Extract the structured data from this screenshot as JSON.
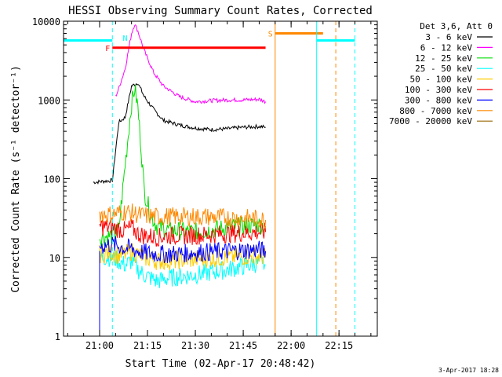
{
  "chart_data": {
    "type": "line",
    "title": "HESSI Observing Summary Count Rates, Corrected",
    "xlabel": "Start Time (02-Apr-17 20:48:42)",
    "ylabel": "Corrected Count Rate (s⁻¹ detector⁻¹)",
    "yscale": "log",
    "ylim": [
      1,
      10000
    ],
    "x_ticks": [
      "21:00",
      "21:15",
      "21:30",
      "21:45",
      "22:00",
      "22:15"
    ],
    "y_ticks": [
      "1",
      "10",
      "100",
      "1000",
      "10000"
    ],
    "legend_title": "Det 3,6, Att 0",
    "legend_position": "right",
    "footer_date": "3-Apr-2017 18:28",
    "series": [
      {
        "name": "3 - 6 keV",
        "color": "#000000",
        "x": [
          "20:58",
          "21:04",
          "21:06",
          "21:08",
          "21:10",
          "21:12",
          "21:14",
          "21:17",
          "21:20",
          "21:25",
          "21:30",
          "21:35",
          "21:40",
          "21:45",
          "21:50",
          "21:52"
        ],
        "y": [
          90,
          95,
          520,
          600,
          1500,
          1650,
          1100,
          750,
          550,
          480,
          440,
          420,
          430,
          450,
          460,
          450
        ]
      },
      {
        "name": "6 - 12 keV",
        "color": "#ff00ff",
        "x": [
          "21:05",
          "21:06",
          "21:08",
          "21:10",
          "21:11",
          "21:12",
          "21:14",
          "21:17",
          "21:20",
          "21:25",
          "21:30",
          "21:35",
          "21:40",
          "21:45",
          "21:50",
          "21:52"
        ],
        "y": [
          1100,
          1400,
          2500,
          7000,
          9200,
          7500,
          4200,
          2200,
          1500,
          1100,
          950,
          980,
          1000,
          1000,
          1020,
          950
        ]
      },
      {
        "name": "12 - 25 keV",
        "color": "#00dd00",
        "x": [
          "21:00",
          "21:04",
          "21:06",
          "21:08",
          "21:10",
          "21:11",
          "21:12",
          "21:13",
          "21:14",
          "21:16",
          "21:18",
          "21:22",
          "21:30",
          "21:40",
          "21:50",
          "21:52"
        ],
        "y": [
          18,
          19,
          22,
          150,
          900,
          1400,
          800,
          250,
          70,
          35,
          25,
          22,
          21,
          24,
          26,
          25
        ]
      },
      {
        "name": "25 - 50 keV",
        "color": "#00ffff",
        "x": [
          "21:00",
          "21:04",
          "21:06",
          "21:08",
          "21:10",
          "21:12",
          "21:14",
          "21:18",
          "21:22",
          "21:30",
          "21:40",
          "21:50",
          "21:52"
        ],
        "y": [
          10,
          10,
          9,
          8,
          9,
          7,
          6,
          5,
          5.5,
          6,
          7,
          8.5,
          8
        ]
      },
      {
        "name": "50 - 100 keV",
        "color": "#ffcc00",
        "x": [
          "21:00",
          "21:04",
          "21:06",
          "21:08",
          "21:10",
          "21:12",
          "21:14",
          "21:18",
          "21:22",
          "21:30",
          "21:40",
          "21:50",
          "21:52"
        ],
        "y": [
          11,
          11.5,
          10.5,
          11,
          12,
          11,
          10,
          9,
          9,
          9.5,
          10,
          10.5,
          10
        ]
      },
      {
        "name": "100 - 300 keV",
        "color": "#ff0000",
        "x": [
          "21:00",
          "21:04",
          "21:06",
          "21:08",
          "21:10",
          "21:12",
          "21:14",
          "21:18",
          "21:22",
          "21:30",
          "21:40",
          "21:50",
          "21:52"
        ],
        "y": [
          25,
          24,
          23,
          22,
          24,
          20,
          19,
          18,
          19,
          19,
          20,
          21,
          21
        ]
      },
      {
        "name": "300 - 800 keV",
        "color": "#0000ff",
        "x": [
          "21:00",
          "21:04",
          "21:06",
          "21:08",
          "21:10",
          "21:12",
          "21:14",
          "21:18",
          "21:22",
          "21:30",
          "21:40",
          "21:50",
          "21:52"
        ],
        "y": [
          14,
          14.5,
          14,
          13,
          13,
          12,
          11.5,
          11,
          11,
          11.5,
          12,
          12.5,
          12
        ]
      },
      {
        "name": "800 - 7000 keV",
        "color": "#ff8800",
        "x": [
          "21:00",
          "21:04",
          "21:06",
          "21:08",
          "21:10",
          "21:12",
          "21:14",
          "21:18",
          "21:22",
          "21:30",
          "21:40",
          "21:50",
          "21:52"
        ],
        "y": [
          36,
          35,
          37,
          38,
          37,
          35,
          34,
          33,
          33,
          33,
          32,
          31,
          30
        ]
      },
      {
        "name": "7000 - 20000 keV",
        "color": "#996600",
        "x": [],
        "y": []
      }
    ],
    "flags": [
      {
        "label": "F",
        "color": "#ff0000",
        "x_start": "21:04",
        "x_end": "21:52",
        "y": 4600
      },
      {
        "label": "N",
        "color": "#00ffff",
        "x_start": "20:48:42",
        "x_end": "21:04",
        "y": 5700
      },
      {
        "label": "N",
        "color": "#00ffff",
        "x_start": "22:08",
        "x_end": "22:20",
        "y": 5700
      },
      {
        "label": "S",
        "color": "#ff8800",
        "x_start": "21:55",
        "x_end": "22:10",
        "y": 7000
      }
    ],
    "vertical_lines": [
      {
        "x": "20:48:42",
        "color": "#00ffff",
        "style": "solid"
      },
      {
        "x": "21:00",
        "color": "#0000ff",
        "style": "solid"
      },
      {
        "x": "21:04",
        "color": "#00ffff",
        "style": "dashed"
      },
      {
        "x": "21:55",
        "color": "#ff8800",
        "style": "solid"
      },
      {
        "x": "22:08",
        "color": "#00ffff",
        "style": "solid"
      },
      {
        "x": "22:14",
        "color": "#ff8800",
        "style": "dashed"
      },
      {
        "x": "22:20",
        "color": "#00ffff",
        "style": "dashed"
      }
    ]
  }
}
